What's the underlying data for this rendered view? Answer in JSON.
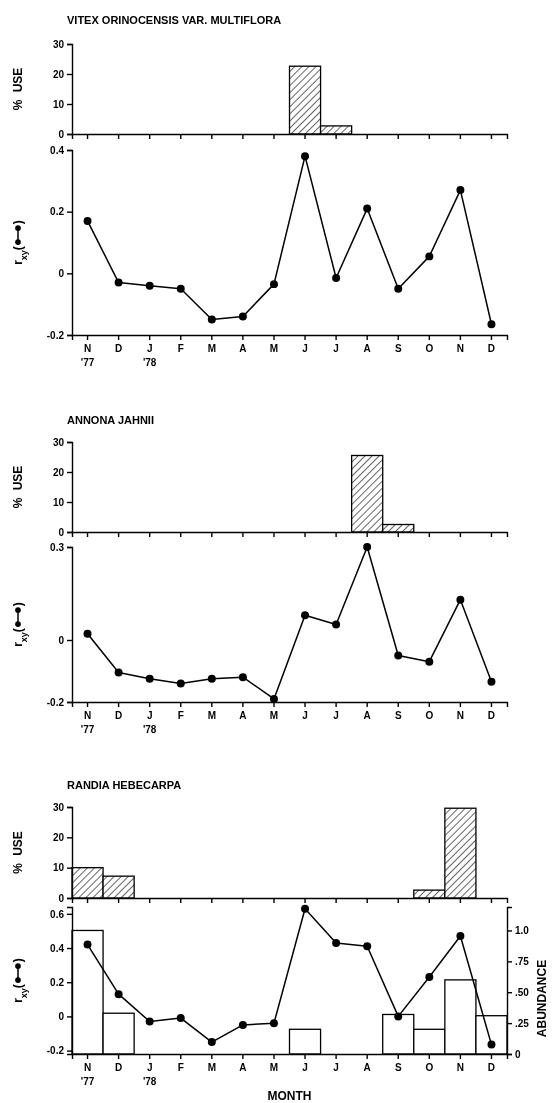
{
  "chart_data": [
    {
      "type": "bar",
      "title": "VITEX ORINOCENSIS VAR. MULTIFLORA",
      "ylabel": "% USE",
      "categories": [
        null,
        null,
        null,
        null,
        null,
        null,
        null,
        null,
        null,
        null,
        null,
        null,
        null,
        null
      ],
      "values": [
        null,
        null,
        null,
        null,
        null,
        null,
        null,
        22.6,
        2.7,
        null,
        null,
        null,
        null,
        null
      ],
      "color": "#000000",
      "ylim": [
        0,
        30
      ],
      "yticks": [
        0,
        10,
        20,
        30
      ],
      "tick_labels": "y"
    },
    {
      "type": "line",
      "ylabel": "r$_{xy}$(   )",
      "categories": [
        "N\n'77",
        "D",
        "J\n'78",
        "F",
        "M",
        "A",
        "M",
        "J",
        "J",
        "A",
        "S",
        "O",
        "N",
        "D"
      ],
      "values": [
        0.17,
        -0.03,
        -0.04,
        -0.05,
        -0.15,
        -0.14,
        -0.035,
        0.38,
        -0.015,
        0.21,
        -0.05,
        0.055,
        0.27,
        -0.165
      ],
      "color": "#000000",
      "marker": "circle",
      "ylim": [
        -0.2,
        0.4
      ],
      "yticks": [
        -0.2,
        0,
        0.2,
        0.4
      ]
    },
    {
      "type": "bar",
      "title": "ANNONA JAHNII",
      "ylabel": "% USE",
      "categories": [
        null,
        null,
        null,
        null,
        null,
        null,
        null,
        null,
        null,
        null,
        null,
        null,
        null,
        null
      ],
      "values": [
        null,
        null,
        null,
        null,
        null,
        null,
        null,
        null,
        null,
        25.5,
        2.5,
        null,
        null,
        null
      ],
      "color": "#000000",
      "ylim": [
        0,
        30
      ],
      "yticks": [
        0,
        10,
        20,
        30
      ],
      "tick_labels": "y"
    },
    {
      "type": "line",
      "ylabel": "r$_{xy}$(   )",
      "categories": [
        "N\n'77",
        "D",
        "J\n'78",
        "F",
        "M",
        "A",
        "M",
        "J",
        "J",
        "A",
        "S",
        "O",
        "N",
        "D"
      ],
      "values": [
        0.02,
        -0.105,
        -0.125,
        -0.14,
        -0.125,
        -0.12,
        -0.19,
        0.08,
        0.05,
        0.3,
        -0.05,
        -0.07,
        0.13,
        -0.135
      ],
      "color": "#000000",
      "marker": "circle",
      "ylim": [
        -0.2,
        0.3
      ],
      "yticks": [
        -0.2,
        0,
        0.3
      ]
    },
    {
      "type": "bar",
      "title": "RANDIA HEBECARPA",
      "ylabel": "% USE",
      "categories": [
        null,
        null,
        null,
        null,
        null,
        null,
        null,
        null,
        null,
        null,
        null,
        null,
        null,
        null
      ],
      "values": [
        10,
        7.2,
        null,
        null,
        null,
        null,
        null,
        null,
        null,
        null,
        null,
        2.6,
        29.6,
        null
      ],
      "color": "#000000",
      "ylim": [
        0,
        30
      ],
      "yticks": [
        0,
        10,
        20,
        30
      ],
      "tick_labels": "y"
    },
    {
      "type": "line",
      "ylabel": "r$_{xy}$(   )",
      "xlabel": "MONTH",
      "y2label": "ABUNDANCE",
      "categories": [
        "N\n'77",
        "D",
        "J\n'78",
        "F",
        "M",
        "A",
        "M",
        "J",
        "J",
        "A",
        "S",
        "O",
        "N",
        "D"
      ],
      "series": [
        {
          "type": "bar",
          "axis": "y2",
          "color": "#000000",
          "values": [
            1.0,
            0.33,
            null,
            null,
            null,
            null,
            null,
            0.2,
            null,
            null,
            0.32,
            0.2,
            0.6,
            0.31
          ]
        },
        {
          "color": "#000000",
          "values": [
            0.42,
            0.13,
            -0.03,
            -0.01,
            -0.15,
            -0.05,
            -0.04,
            0.63,
            0.43,
            0.41,
            0.0,
            0.23,
            0.47,
            -0.165
          ]
        }
      ],
      "marker": "circle",
      "ylim": [
        -0.22,
        0.64
      ],
      "yticks": [
        -0.2,
        0,
        0.2,
        0.4,
        0.6
      ],
      "y2lim": [
        0,
        1.19
      ],
      "y2ticks": [
        0,
        {
          "value": 0.25,
          "label": ".25"
        },
        {
          "value": 0.5,
          "label": ".50"
        },
        {
          "value": 0.75,
          "label": ".75"
        },
        {
          "value": 1,
          "label": "1.0"
        }
      ]
    }
  ]
}
